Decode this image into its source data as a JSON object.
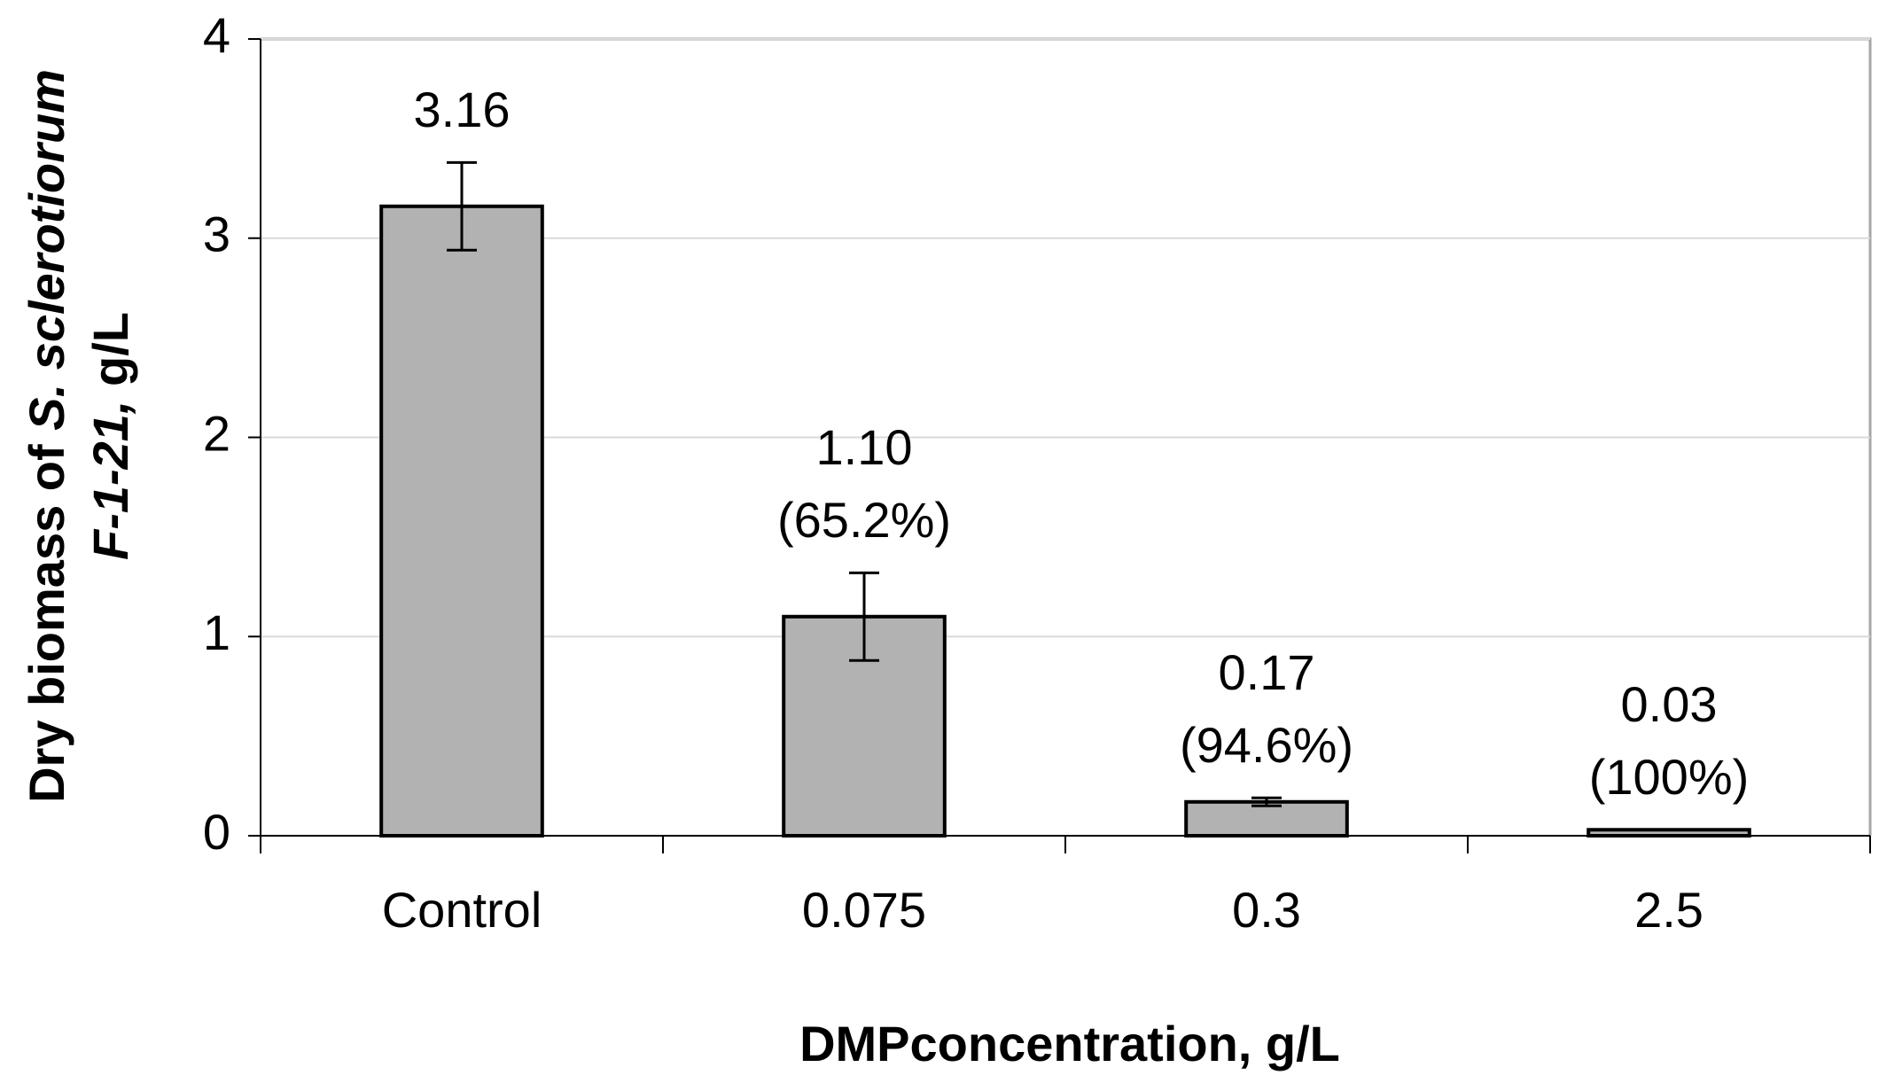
{
  "chart_data": {
    "type": "bar",
    "categories": [
      "Control",
      "0.075",
      "0.3",
      "2.5"
    ],
    "values": [
      3.16,
      1.1,
      0.17,
      0.03
    ],
    "value_labels": [
      "3.16",
      "1.10",
      "0.17",
      "0.03"
    ],
    "inhibition_labels": [
      null,
      "(65.2%)",
      "(94.6%)",
      "(100%)"
    ],
    "errors": [
      0.22,
      0.22,
      0.02,
      null
    ],
    "color": "#b2b2b2",
    "ylim": [
      0,
      4
    ],
    "yticks": [
      0,
      1,
      2,
      3,
      4
    ],
    "grid": true,
    "x_label": "DMPconcentration, g/L",
    "y_label": [
      [
        {
          "text": "Dry biomass of ",
          "italic": false
        },
        {
          "text": "S. sclerotiorum",
          "italic": true
        }
      ],
      [
        {
          "text": "F-1-21,",
          "italic": true
        },
        {
          "text": " g/L",
          "italic": false
        }
      ]
    ]
  }
}
